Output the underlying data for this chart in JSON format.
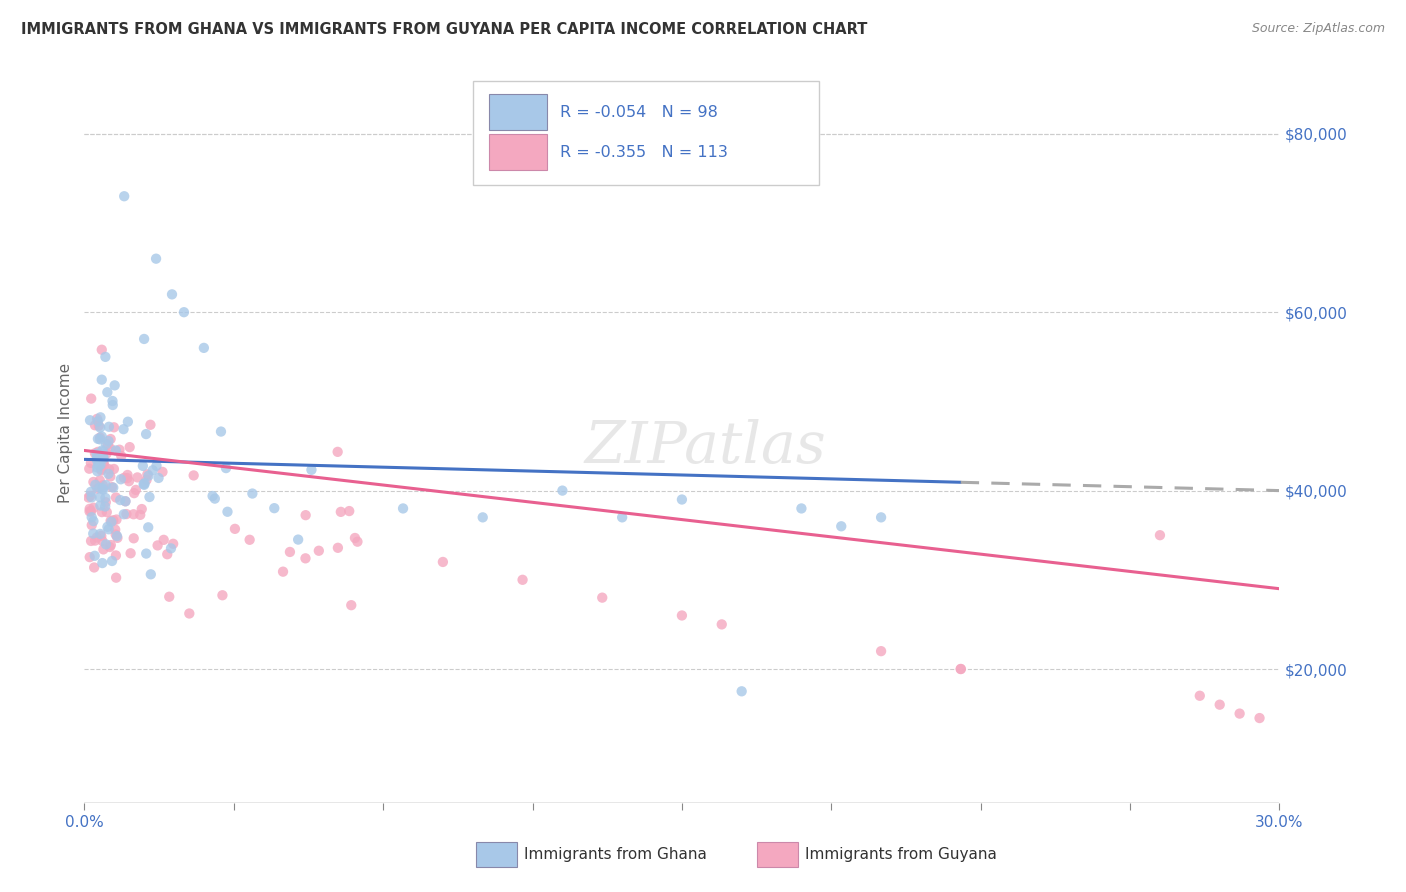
{
  "title": "IMMIGRANTS FROM GHANA VS IMMIGRANTS FROM GUYANA PER CAPITA INCOME CORRELATION CHART",
  "source": "Source: ZipAtlas.com",
  "ylabel": "Per Capita Income",
  "yticks": [
    20000,
    40000,
    60000,
    80000
  ],
  "ytick_labels": [
    "$20,000",
    "$40,000",
    "$60,000",
    "$80,000"
  ],
  "xlim": [
    0.0,
    0.3
  ],
  "ylim": [
    5000,
    88000
  ],
  "ghana_color": "#a8c8e8",
  "guyana_color": "#f4a8c0",
  "ghana_line_color": "#4472c4",
  "guyana_line_color": "#e86090",
  "ghana_dash_color": "#aaaaaa",
  "ghana_R": -0.054,
  "ghana_N": 98,
  "guyana_R": -0.355,
  "guyana_N": 113,
  "watermark": "ZIPatlas",
  "background_color": "#ffffff",
  "grid_color": "#cccccc",
  "title_color": "#333333",
  "ylabel_color": "#666666",
  "tick_color": "#4472c4",
  "legend_text_color": "#4472c4",
  "legend_label_color": "#333333"
}
